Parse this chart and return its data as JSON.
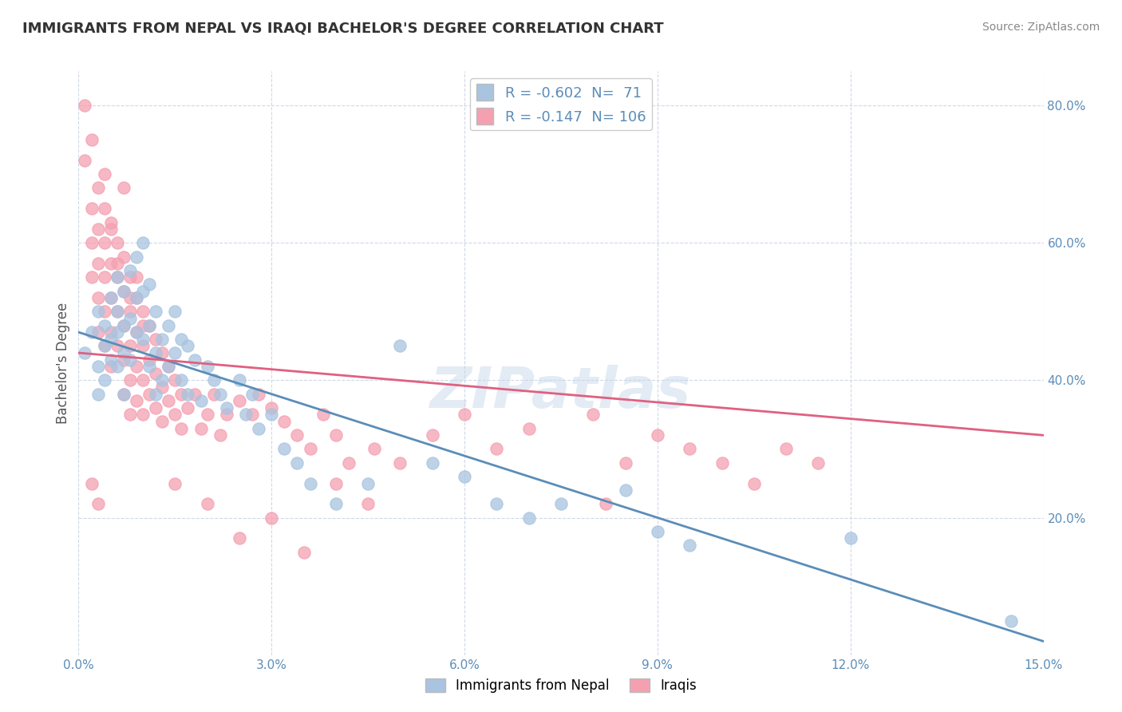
{
  "title": "IMMIGRANTS FROM NEPAL VS IRAQI BACHELOR'S DEGREE CORRELATION CHART",
  "source_text": "Source: ZipAtlas.com",
  "ylabel": "Bachelor's Degree",
  "xmin": 0.0,
  "xmax": 0.15,
  "ymin": 0.0,
  "ymax": 0.85,
  "yticks_right": [
    0.2,
    0.4,
    0.6,
    0.8
  ],
  "ytick_labels_right": [
    "20.0%",
    "40.0%",
    "60.0%",
    "80.0%"
  ],
  "xticks": [
    0.0,
    0.03,
    0.06,
    0.09,
    0.12,
    0.15
  ],
  "xtick_labels": [
    "0.0%",
    "3.0%",
    "6.0%",
    "9.0%",
    "12.0%",
    "15.0%"
  ],
  "nepal_color": "#a8c4e0",
  "iraq_color": "#f4a0b0",
  "nepal_line_color": "#5b8db8",
  "iraq_line_color": "#e06080",
  "nepal_R": -0.602,
  "nepal_N": 71,
  "iraq_R": -0.147,
  "iraq_N": 106,
  "nepal_trend_x": [
    0.0,
    0.15
  ],
  "nepal_trend_y": [
    0.47,
    0.02
  ],
  "iraq_trend_x": [
    0.0,
    0.15
  ],
  "iraq_trend_y": [
    0.44,
    0.32
  ],
  "watermark": "ZIPatlas",
  "legend_label1": "Immigrants from Nepal",
  "legend_label2": "Iraqis",
  "background_color": "#ffffff",
  "grid_color": "#d0d8e8",
  "nepal_scatter_x": [
    0.001,
    0.002,
    0.003,
    0.003,
    0.003,
    0.004,
    0.004,
    0.004,
    0.005,
    0.005,
    0.005,
    0.006,
    0.006,
    0.006,
    0.006,
    0.007,
    0.007,
    0.007,
    0.007,
    0.008,
    0.008,
    0.008,
    0.009,
    0.009,
    0.009,
    0.01,
    0.01,
    0.01,
    0.011,
    0.011,
    0.011,
    0.012,
    0.012,
    0.012,
    0.013,
    0.013,
    0.014,
    0.014,
    0.015,
    0.015,
    0.016,
    0.016,
    0.017,
    0.017,
    0.018,
    0.019,
    0.02,
    0.021,
    0.022,
    0.023,
    0.025,
    0.026,
    0.027,
    0.028,
    0.03,
    0.032,
    0.034,
    0.036,
    0.04,
    0.045,
    0.05,
    0.055,
    0.06,
    0.065,
    0.07,
    0.075,
    0.085,
    0.09,
    0.095,
    0.12,
    0.145
  ],
  "nepal_scatter_y": [
    0.44,
    0.47,
    0.5,
    0.42,
    0.38,
    0.48,
    0.45,
    0.4,
    0.52,
    0.46,
    0.43,
    0.55,
    0.5,
    0.47,
    0.42,
    0.53,
    0.48,
    0.44,
    0.38,
    0.56,
    0.49,
    0.43,
    0.58,
    0.52,
    0.47,
    0.6,
    0.53,
    0.46,
    0.54,
    0.48,
    0.42,
    0.5,
    0.44,
    0.38,
    0.46,
    0.4,
    0.48,
    0.42,
    0.5,
    0.44,
    0.46,
    0.4,
    0.45,
    0.38,
    0.43,
    0.37,
    0.42,
    0.4,
    0.38,
    0.36,
    0.4,
    0.35,
    0.38,
    0.33,
    0.35,
    0.3,
    0.28,
    0.25,
    0.22,
    0.25,
    0.45,
    0.28,
    0.26,
    0.22,
    0.2,
    0.22,
    0.24,
    0.18,
    0.16,
    0.17,
    0.05
  ],
  "iraq_scatter_x": [
    0.001,
    0.001,
    0.002,
    0.002,
    0.002,
    0.002,
    0.003,
    0.003,
    0.003,
    0.003,
    0.003,
    0.004,
    0.004,
    0.004,
    0.004,
    0.004,
    0.005,
    0.005,
    0.005,
    0.005,
    0.005,
    0.006,
    0.006,
    0.006,
    0.006,
    0.007,
    0.007,
    0.007,
    0.007,
    0.007,
    0.008,
    0.008,
    0.008,
    0.008,
    0.008,
    0.009,
    0.009,
    0.009,
    0.009,
    0.01,
    0.01,
    0.01,
    0.01,
    0.011,
    0.011,
    0.011,
    0.012,
    0.012,
    0.012,
    0.013,
    0.013,
    0.013,
    0.014,
    0.014,
    0.015,
    0.015,
    0.016,
    0.016,
    0.017,
    0.018,
    0.019,
    0.02,
    0.021,
    0.022,
    0.023,
    0.025,
    0.027,
    0.028,
    0.03,
    0.032,
    0.034,
    0.036,
    0.038,
    0.04,
    0.042,
    0.046,
    0.05,
    0.055,
    0.06,
    0.065,
    0.07,
    0.08,
    0.082,
    0.085,
    0.09,
    0.095,
    0.1,
    0.105,
    0.11,
    0.115,
    0.002,
    0.003,
    0.004,
    0.005,
    0.006,
    0.007,
    0.008,
    0.009,
    0.01,
    0.015,
    0.02,
    0.025,
    0.03,
    0.035,
    0.04,
    0.045
  ],
  "iraq_scatter_y": [
    0.8,
    0.72,
    0.75,
    0.65,
    0.6,
    0.55,
    0.68,
    0.62,
    0.57,
    0.52,
    0.47,
    0.65,
    0.6,
    0.55,
    0.5,
    0.45,
    0.62,
    0.57,
    0.52,
    0.47,
    0.42,
    0.6,
    0.55,
    0.5,
    0.45,
    0.58,
    0.53,
    0.48,
    0.43,
    0.38,
    0.55,
    0.5,
    0.45,
    0.4,
    0.35,
    0.52,
    0.47,
    0.42,
    0.37,
    0.5,
    0.45,
    0.4,
    0.35,
    0.48,
    0.43,
    0.38,
    0.46,
    0.41,
    0.36,
    0.44,
    0.39,
    0.34,
    0.42,
    0.37,
    0.4,
    0.35,
    0.38,
    0.33,
    0.36,
    0.38,
    0.33,
    0.35,
    0.38,
    0.32,
    0.35,
    0.37,
    0.35,
    0.38,
    0.36,
    0.34,
    0.32,
    0.3,
    0.35,
    0.32,
    0.28,
    0.3,
    0.28,
    0.32,
    0.35,
    0.3,
    0.33,
    0.35,
    0.22,
    0.28,
    0.32,
    0.3,
    0.28,
    0.25,
    0.3,
    0.28,
    0.25,
    0.22,
    0.7,
    0.63,
    0.57,
    0.68,
    0.52,
    0.55,
    0.48,
    0.25,
    0.22,
    0.17,
    0.2,
    0.15,
    0.25,
    0.22
  ]
}
